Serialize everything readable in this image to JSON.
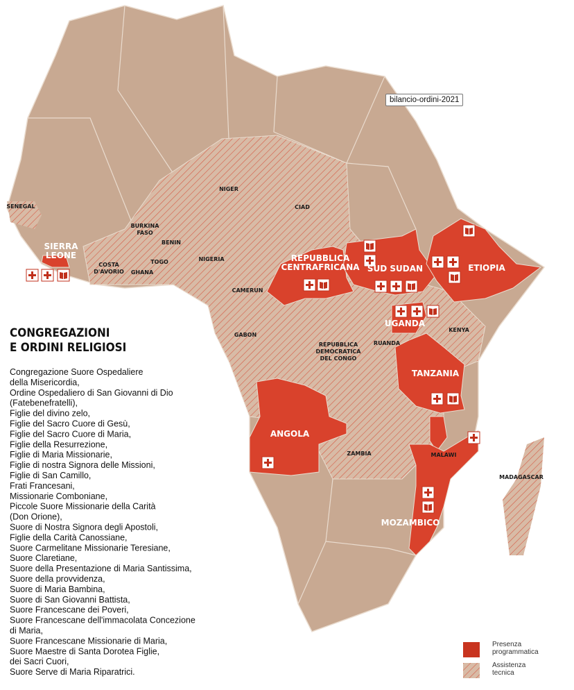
{
  "tooltip": "bilancio-ordini-2021",
  "countries": [
    {
      "label": [
        "SENEGAL"
      ]
    },
    {
      "label": [
        "SIERRA",
        "LEONE"
      ]
    },
    {
      "label": [
        "BURKINA",
        "FASO"
      ]
    },
    {
      "label": [
        "BENIN"
      ]
    },
    {
      "label": [
        "TOGO"
      ]
    },
    {
      "label": [
        "GHANA"
      ]
    },
    {
      "label": [
        "COSTA",
        "D'AVORIO"
      ]
    },
    {
      "label": [
        "NIGER"
      ]
    },
    {
      "label": [
        "NIGERIA"
      ]
    },
    {
      "label": [
        "CIAD"
      ]
    },
    {
      "label": [
        "CAMERUN"
      ]
    },
    {
      "label": [
        "GABON"
      ]
    },
    {
      "label": [
        "REPUBBLICA",
        "CENTRAFRICANA"
      ]
    },
    {
      "label": [
        "SUD SUDAN"
      ]
    },
    {
      "label": [
        "ETIOPIA"
      ]
    },
    {
      "label": [
        "UGANDA"
      ]
    },
    {
      "label": [
        "KENYA"
      ]
    },
    {
      "label": [
        "RUANDA"
      ]
    },
    {
      "label": [
        "REPUBBLICA",
        "DEMOCRATICA",
        "DEL CONGO"
      ]
    },
    {
      "label": [
        "TANZANIA"
      ]
    },
    {
      "label": [
        "ANGOLA"
      ]
    },
    {
      "label": [
        "ZAMBIA"
      ]
    },
    {
      "label": [
        "MALAWI"
      ]
    },
    {
      "label": [
        "MOZAMBICO"
      ]
    },
    {
      "label": [
        "MADAGASCAR"
      ]
    }
  ],
  "panel": {
    "title": [
      "CONGREGAZIONI",
      "E ORDINI RELIGIOSI"
    ],
    "lines": [
      "Congregazione Suore Ospedaliere",
      "della Misericordia,",
      "Ordine Ospedaliero di San Giovanni di Dio",
      "(Fatebenefratelli),",
      "Figlie del divino zelo,",
      "Figlie del Sacro Cuore di Gesù,",
      "Figlie del Sacro Cuore di Maria,",
      "Figlie della Resurrezione,",
      "Figlie di Maria Missionarie,",
      "Figlie di nostra Signora delle Missioni,",
      "Figlie di San Camillo,",
      "Frati Francesani,",
      "Missionarie Comboniane,",
      "Piccole Suore Missionarie della Carità",
      "(Don Orione),",
      "Suore di Nostra Signora degli Apostoli,",
      "Figlie della Carità Canossiane,",
      "Suore Carmelitane Missionarie Teresiane,",
      "Suore Claretiane,",
      "Suore della Presentazione di Maria Santissima,",
      "Suore della provvidenza,",
      "Suore di Maria Bambina,",
      "Suore di San Giovanni Battista,",
      "Suore Francescane dei Poveri,",
      "Suore Francescane dell'immacolata Concezione",
      "di Maria,",
      "Suore Francescane Missionarie di Maria,",
      "Suore Maestre di Santa Dorotea Figlie,",
      "dei Sacri Cuori,",
      "Suore Serve di Maria Riparatrici."
    ]
  },
  "legend": [
    {
      "label": [
        "Presenza",
        "programmatica"
      ]
    },
    {
      "label": [
        "Assistenza",
        "tecnica"
      ]
    }
  ]
}
